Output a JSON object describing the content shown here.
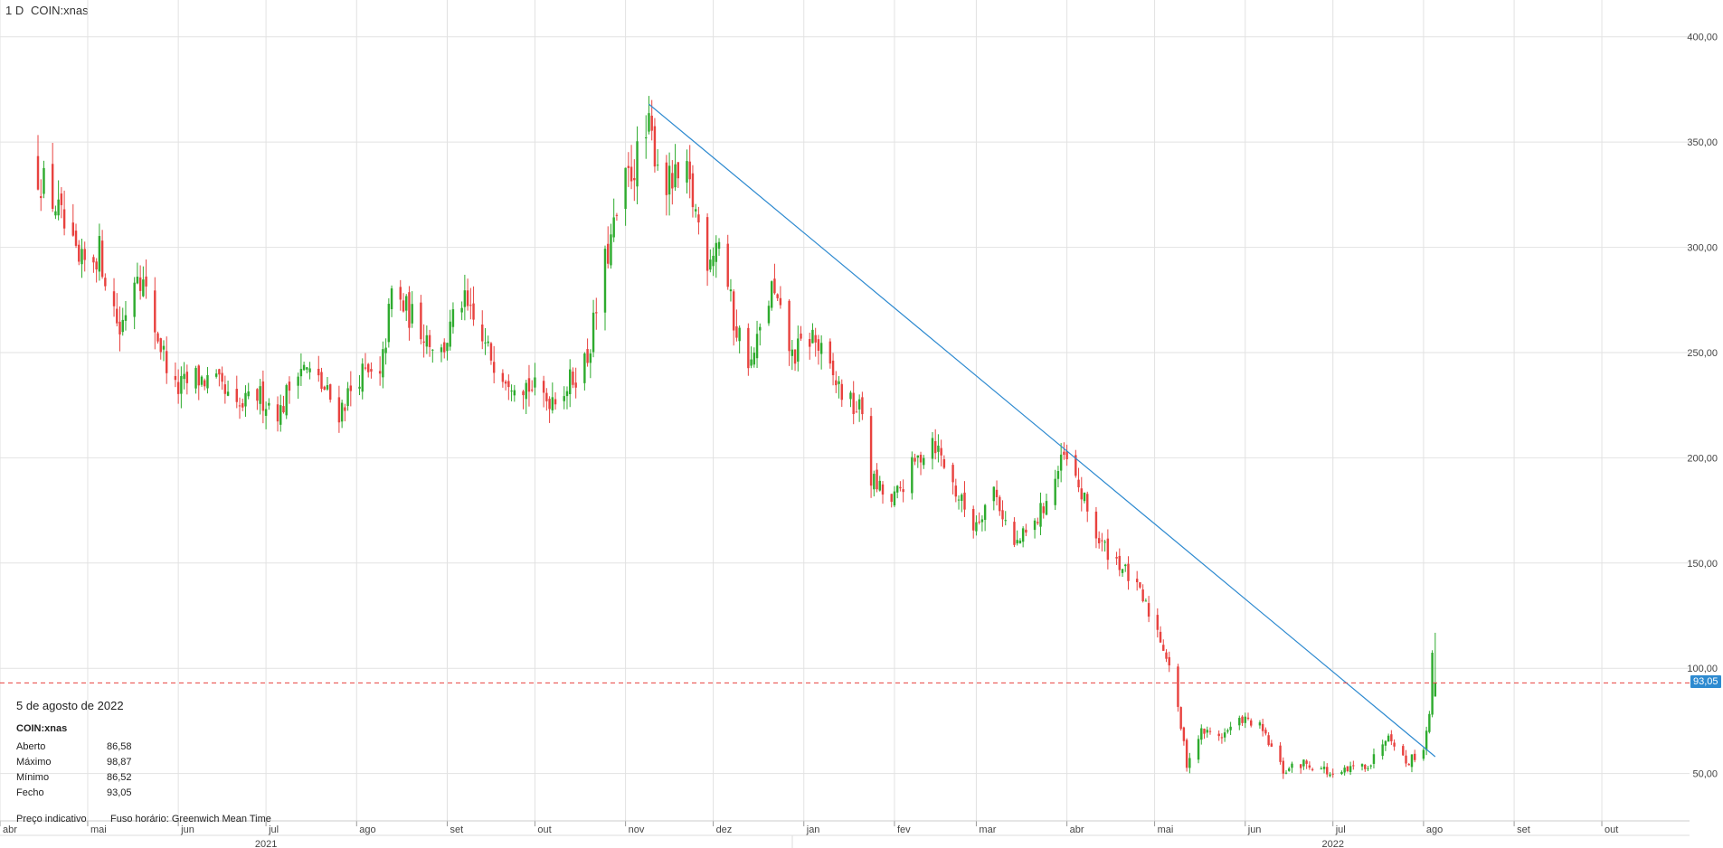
{
  "header": {
    "interval": "1 D",
    "symbol": "COIN:xnas"
  },
  "colors": {
    "up": "#2eab2e",
    "down": "#e8423f",
    "trend": "#2d8ad0",
    "grid": "#e2e2e2",
    "last_line": "#e8423f",
    "tag": "#2d8ad0"
  },
  "info": {
    "date": "5 de agosto de 2022",
    "symbol": "COIN:xnas",
    "rows": [
      {
        "label": "Aberto",
        "value": "86,58"
      },
      {
        "label": "Máximo",
        "value": "98,87"
      },
      {
        "label": "Mínimo",
        "value": "86,52"
      },
      {
        "label": "Fecho",
        "value": "93,05"
      }
    ]
  },
  "footer": {
    "price_note": "Preço indicativo",
    "timezone": "Fuso horário: Greenwich Mean Time"
  },
  "chart_data": {
    "type": "candlestick",
    "title": "",
    "xlabel": "",
    "ylabel": "",
    "x_range": [
      "2021-04-01",
      "2022-10-31"
    ],
    "ylim": [
      27.5,
      417.5
    ],
    "y_ticks": [
      {
        "value": 50,
        "label": "50,00"
      },
      {
        "value": 100,
        "label": "100,00"
      },
      {
        "value": 150,
        "label": "150,00"
      },
      {
        "value": 200,
        "label": "200,00"
      },
      {
        "value": 250,
        "label": "250,00"
      },
      {
        "value": 300,
        "label": "300,00"
      },
      {
        "value": 350,
        "label": "350,00"
      },
      {
        "value": 400,
        "label": "400,00"
      }
    ],
    "month_ticks": [
      {
        "date": "2021-04-01",
        "label": "abr"
      },
      {
        "date": "2021-05-01",
        "label": "mai"
      },
      {
        "date": "2021-06-01",
        "label": "jun"
      },
      {
        "date": "2021-07-01",
        "label": "jul"
      },
      {
        "date": "2021-08-01",
        "label": "ago"
      },
      {
        "date": "2021-09-01",
        "label": "set"
      },
      {
        "date": "2021-10-01",
        "label": "out"
      },
      {
        "date": "2021-11-01",
        "label": "nov"
      },
      {
        "date": "2021-12-01",
        "label": "dez"
      },
      {
        "date": "2022-01-01",
        "label": "jan"
      },
      {
        "date": "2022-02-01",
        "label": "fev"
      },
      {
        "date": "2022-03-01",
        "label": "mar"
      },
      {
        "date": "2022-04-01",
        "label": "abr"
      },
      {
        "date": "2022-05-01",
        "label": "mai"
      },
      {
        "date": "2022-06-01",
        "label": "jun"
      },
      {
        "date": "2022-07-01",
        "label": "jul"
      },
      {
        "date": "2022-08-01",
        "label": "ago"
      },
      {
        "date": "2022-09-01",
        "label": "set"
      },
      {
        "date": "2022-10-01",
        "label": "out"
      }
    ],
    "year_ticks": [
      {
        "date": "2021-07-01",
        "label": "2021"
      },
      {
        "date": "2022-07-01",
        "label": "2022"
      }
    ],
    "last_price": {
      "value": 93.05,
      "label": "93,05"
    },
    "trendline": {
      "start": {
        "date": "2021-11-09",
        "value": 368
      },
      "end": {
        "date": "2022-08-05",
        "value": 58
      }
    },
    "anchors": [
      [
        "2021-04-14",
        335
      ],
      [
        "2021-04-20",
        320
      ],
      [
        "2021-04-28",
        290
      ],
      [
        "2021-05-05",
        298
      ],
      [
        "2021-05-12",
        260
      ],
      [
        "2021-05-18",
        292
      ],
      [
        "2021-05-24",
        262
      ],
      [
        "2021-05-31",
        232
      ],
      [
        "2021-06-07",
        238
      ],
      [
        "2021-06-14",
        235
      ],
      [
        "2021-06-21",
        222
      ],
      [
        "2021-06-28",
        230
      ],
      [
        "2021-07-06",
        222
      ],
      [
        "2021-07-12",
        245
      ],
      [
        "2021-07-19",
        236
      ],
      [
        "2021-07-26",
        222
      ],
      [
        "2021-08-02",
        240
      ],
      [
        "2021-08-09",
        236
      ],
      [
        "2021-08-13",
        278
      ],
      [
        "2021-08-23",
        262
      ],
      [
        "2021-08-30",
        250
      ],
      [
        "2021-09-06",
        275
      ],
      [
        "2021-09-14",
        252
      ],
      [
        "2021-09-21",
        240
      ],
      [
        "2021-09-28",
        235
      ],
      [
        "2021-10-05",
        228
      ],
      [
        "2021-10-12",
        234
      ],
      [
        "2021-10-19",
        248
      ],
      [
        "2021-10-25",
        292
      ],
      [
        "2021-11-01",
        330
      ],
      [
        "2021-11-09",
        355
      ],
      [
        "2021-11-15",
        330
      ],
      [
        "2021-11-22",
        332
      ],
      [
        "2021-11-29",
        296
      ],
      [
        "2021-12-03",
        305
      ],
      [
        "2021-12-08",
        265
      ],
      [
        "2021-12-14",
        244
      ],
      [
        "2021-12-21",
        280
      ],
      [
        "2021-12-28",
        248
      ],
      [
        "2022-01-04",
        258
      ],
      [
        "2022-01-10",
        240
      ],
      [
        "2022-01-17",
        225
      ],
      [
        "2022-01-21",
        222
      ],
      [
        "2022-01-24",
        190
      ],
      [
        "2022-01-31",
        178
      ],
      [
        "2022-02-07",
        195
      ],
      [
        "2022-02-14",
        210
      ],
      [
        "2022-02-22",
        184
      ],
      [
        "2022-02-28",
        168
      ],
      [
        "2022-03-07",
        185
      ],
      [
        "2022-03-14",
        158
      ],
      [
        "2022-03-21",
        168
      ],
      [
        "2022-03-28",
        190
      ],
      [
        "2022-03-31",
        200
      ],
      [
        "2022-04-05",
        186
      ],
      [
        "2022-04-12",
        160
      ],
      [
        "2022-04-19",
        150
      ],
      [
        "2022-04-26",
        135
      ],
      [
        "2022-05-02",
        118
      ],
      [
        "2022-05-06",
        102
      ],
      [
        "2022-05-10",
        72
      ],
      [
        "2022-05-12",
        55
      ],
      [
        "2022-05-17",
        70
      ],
      [
        "2022-05-24",
        68
      ],
      [
        "2022-05-31",
        76
      ],
      [
        "2022-06-06",
        72
      ],
      [
        "2022-06-10",
        62
      ],
      [
        "2022-06-14",
        51
      ],
      [
        "2022-06-21",
        55
      ],
      [
        "2022-06-28",
        52
      ],
      [
        "2022-07-01",
        48
      ],
      [
        "2022-07-07",
        52
      ],
      [
        "2022-07-14",
        55
      ],
      [
        "2022-07-20",
        70
      ],
      [
        "2022-07-26",
        55
      ],
      [
        "2022-08-01",
        62
      ],
      [
        "2022-08-03",
        80
      ],
      [
        "2022-08-04",
        105
      ],
      [
        "2022-08-05",
        93
      ]
    ]
  }
}
